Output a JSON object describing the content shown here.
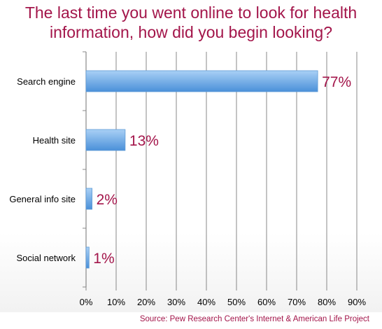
{
  "title_line1": "The last time you went online to look for health",
  "title_line2": "information, how did you begin looking?",
  "source": "Source: Pew Research Center's Internet & American Life Project",
  "colors": {
    "title": "#a3154a",
    "value_label": "#a3154a",
    "bar_top": "#a9d0f5",
    "bar_bottom": "#4a90d9",
    "grid": "#888888"
  },
  "chart_data": {
    "type": "bar",
    "orientation": "horizontal",
    "categories": [
      "Search engine",
      "Health site",
      "General info site",
      "Social network"
    ],
    "values": [
      77,
      13,
      2,
      1
    ],
    "data_labels": [
      "77%",
      "13%",
      "2%",
      "1%"
    ],
    "xlim": [
      0,
      90
    ],
    "x_ticks": [
      "0%",
      "10%",
      "20%",
      "30%",
      "40%",
      "50%",
      "60%",
      "70%",
      "80%",
      "90%"
    ],
    "grid": true
  }
}
